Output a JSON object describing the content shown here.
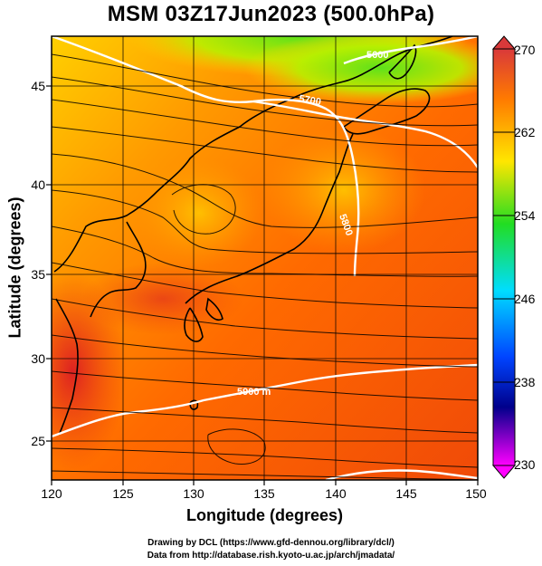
{
  "title": "MSM 03Z17Jun2023 (500.0hPa)",
  "x_axis": {
    "label": "Longitude (degrees)",
    "ticks": [
      "120",
      "125",
      "130",
      "135",
      "140",
      "145",
      "150"
    ]
  },
  "y_axis": {
    "label": "Latitude  (degrees)",
    "ticks": [
      "45",
      "40",
      "35",
      "30",
      "25"
    ]
  },
  "colorbar": {
    "ticks": [
      "270",
      "262",
      "254",
      "246",
      "238",
      "230"
    ],
    "colors": [
      "#d9393a",
      "#ff8a00",
      "#ffff00",
      "#22dd22",
      "#00ddff",
      "#0044ff",
      "#00008b",
      "#ff00ff"
    ]
  },
  "contour_labels": [
    "5900 m",
    "5700",
    "5800",
    "5600"
  ],
  "credits": {
    "line1": "Drawing by DCL (https://www.gfd-dennou.org/library/dcl/)",
    "line2": "Data from http://database.rish.kyoto-u.ac.jp/arch/jmadata/"
  }
}
